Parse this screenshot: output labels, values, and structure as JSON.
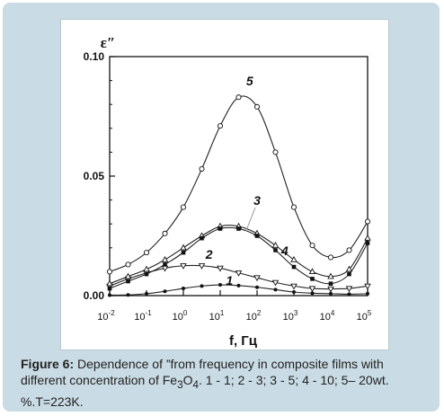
{
  "caption": {
    "label": "Figure 6:",
    "text_a": "Dependence of  ”from frequency in composite films with different concentration of Fe",
    "sub3": "3",
    "text_o": "O",
    "sub4": "4",
    "text_b": ". 1 - 1; 2 - 3; 3 - 5; 4 - 10; 5– 20wt. %.T=223K."
  },
  "chart_data": {
    "type": "line",
    "ylabel": "ε″",
    "xlabel": "f, Гц",
    "xscale": "log",
    "xlim": [
      -2,
      5
    ],
    "ylim": [
      0,
      0.1
    ],
    "x_ticks": [
      {
        "exp": -2,
        "base": "10",
        "sup": "-2"
      },
      {
        "exp": -1,
        "base": "10",
        "sup": "-1"
      },
      {
        "exp": 0,
        "base": "10",
        "sup": "0"
      },
      {
        "exp": 1,
        "base": "10",
        "sup": "1"
      },
      {
        "exp": 2,
        "base": "10",
        "sup": "2"
      },
      {
        "exp": 3,
        "base": "10",
        "sup": "3"
      },
      {
        "exp": 4,
        "base": "10",
        "sup": "4"
      },
      {
        "exp": 5,
        "base": "10",
        "sup": "5"
      }
    ],
    "y_ticks": [
      {
        "value": 0,
        "label": "0.00"
      },
      {
        "value": 0.05,
        "label": "0.05"
      },
      {
        "value": 0.1,
        "label": "0.10"
      }
    ],
    "series": [
      {
        "name": "1",
        "marker": "dot",
        "x": [
          -2,
          -1.5,
          -1,
          -0.5,
          0,
          0.5,
          1,
          1.5,
          2,
          2.5,
          3,
          3.5,
          4,
          4.5,
          5
        ],
        "y": [
          0.0002,
          0.0003,
          0.0008,
          0.0018,
          0.003,
          0.004,
          0.0045,
          0.0042,
          0.0035,
          0.0025,
          0.0015,
          0.001,
          0.0008,
          0.0006,
          0.0008
        ]
      },
      {
        "name": "2",
        "marker": "triangle-down",
        "x": [
          -2,
          -1.5,
          -1,
          -0.5,
          0,
          0.5,
          1,
          1.5,
          2,
          2.5,
          3,
          3.5,
          4,
          4.5,
          5
        ],
        "y": [
          0.004,
          0.007,
          0.0095,
          0.0115,
          0.0125,
          0.0125,
          0.0115,
          0.0095,
          0.0075,
          0.0055,
          0.004,
          0.003,
          0.0028,
          0.003,
          0.004
        ]
      },
      {
        "name": "3",
        "marker": "triangle-up",
        "x": [
          -2,
          -1.5,
          -1,
          -0.5,
          0,
          0.5,
          1,
          1.5,
          2,
          2.5,
          3,
          3.5,
          4,
          4.5,
          5
        ],
        "y": [
          0.005,
          0.008,
          0.011,
          0.015,
          0.02,
          0.025,
          0.029,
          0.029,
          0.026,
          0.021,
          0.015,
          0.01,
          0.008,
          0.011,
          0.024
        ]
      },
      {
        "name": "4",
        "marker": "square",
        "x": [
          -2,
          -1.5,
          -1,
          -0.5,
          0,
          0.5,
          1,
          1.5,
          2,
          2.5,
          3,
          3.5,
          4,
          4.5,
          5
        ],
        "y": [
          0.003,
          0.006,
          0.009,
          0.013,
          0.018,
          0.024,
          0.028,
          0.028,
          0.025,
          0.019,
          0.012,
          0.007,
          0.005,
          0.009,
          0.022
        ]
      },
      {
        "name": "5",
        "marker": "circle",
        "x": [
          -2,
          -1.5,
          -1,
          -0.5,
          0,
          0.5,
          1,
          1.5,
          2,
          2.5,
          3,
          3.5,
          4,
          4.5,
          5
        ],
        "y": [
          0.01,
          0.013,
          0.018,
          0.026,
          0.037,
          0.053,
          0.071,
          0.083,
          0.079,
          0.06,
          0.037,
          0.021,
          0.016,
          0.019,
          0.031
        ]
      }
    ],
    "series_labels": [
      {
        "series": "1",
        "text": "1",
        "x": 1.25,
        "y": 0.0045
      },
      {
        "series": "2",
        "text": "2",
        "x": 0.7,
        "y": 0.0155
      },
      {
        "series": "3",
        "text": "3",
        "x": 2.0,
        "y": 0.038
      },
      {
        "series": "4",
        "text": "4",
        "x": 2.75,
        "y": 0.017
      },
      {
        "series": "5",
        "text": "5",
        "x": 1.8,
        "y": 0.088
      }
    ],
    "grid": false,
    "legend": "none"
  }
}
